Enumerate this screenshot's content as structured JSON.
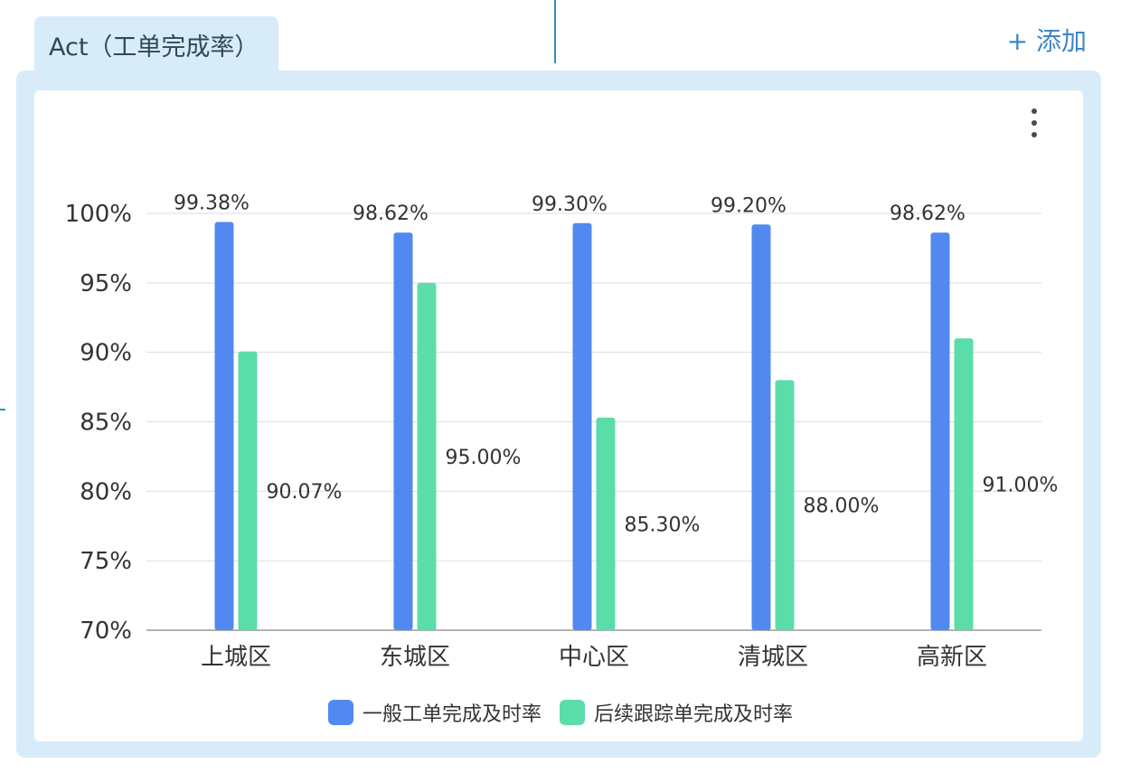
{
  "tab": {
    "title": "Act（工单完成率）"
  },
  "toolbar": {
    "add_label": "+ 添加",
    "more_icon": "more-vertical-icon"
  },
  "colors": {
    "series1": "#5289f0",
    "series2": "#5bddaa",
    "panel": "#d8ebf8",
    "accent": "#3d86c6"
  },
  "chart_data": {
    "type": "bar",
    "categories": [
      "上城区",
      "东城区",
      "中心区",
      "清城区",
      "高新区"
    ],
    "series": [
      {
        "name": "一般工单完成及时率",
        "values": [
          99.38,
          98.62,
          99.3,
          99.2,
          98.62
        ],
        "labels": [
          "99.38%",
          "98.62%",
          "99.30%",
          "99.20%",
          "98.62%"
        ],
        "color": "#5289f0"
      },
      {
        "name": "后续跟踪单完成及时率",
        "values": [
          90.07,
          95.0,
          85.3,
          88.0,
          91.0
        ],
        "labels": [
          "90.07%",
          "95.00%",
          "85.30%",
          "88.00%",
          "91.00%"
        ],
        "color": "#5bddaa"
      }
    ],
    "ylim": [
      70,
      100
    ],
    "yticks": [
      70,
      75,
      80,
      85,
      90,
      95,
      100
    ],
    "ytick_labels": [
      "70%",
      "75%",
      "80%",
      "85%",
      "90%",
      "95%",
      "100%"
    ],
    "grid": true,
    "legend": "bottom"
  }
}
